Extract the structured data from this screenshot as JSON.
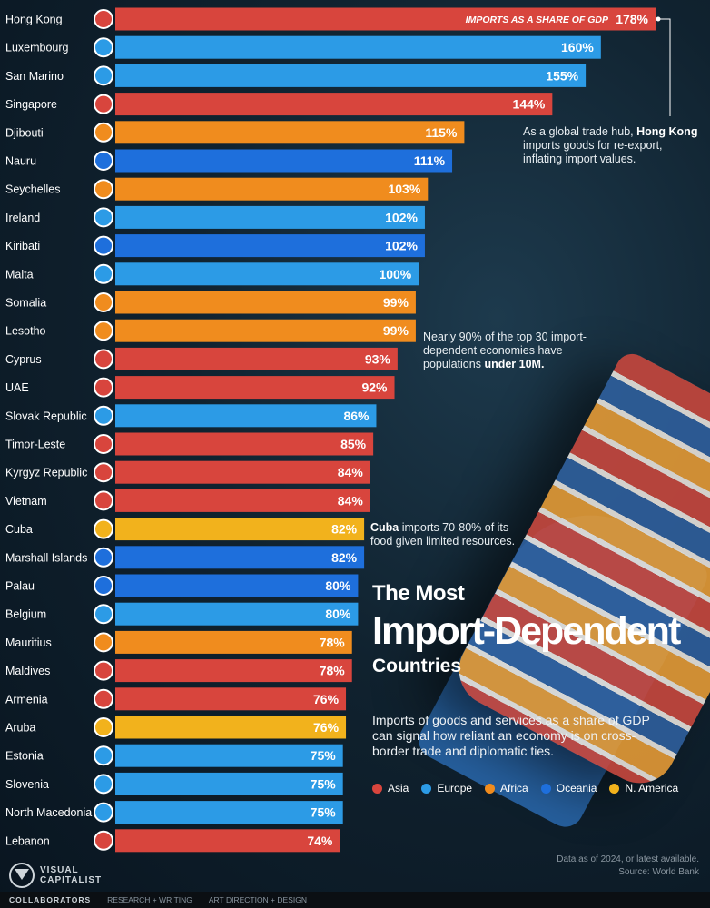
{
  "chart_data": {
    "type": "bar",
    "orientation": "horizontal",
    "title": "The Most",
    "title_main": "Import-Dependent",
    "title_sub": "Countries",
    "value_header": "IMPORTS AS A SHARE OF GDP",
    "unit_suffix": "%",
    "categories": [
      "Hong Kong",
      "Luxembourg",
      "San Marino",
      "Singapore",
      "Djibouti",
      "Nauru",
      "Seychelles",
      "Ireland",
      "Kiribati",
      "Malta",
      "Somalia",
      "Lesotho",
      "Cyprus",
      "UAE",
      "Slovak Republic",
      "Timor-Leste",
      "Kyrgyz Republic",
      "Vietnam",
      "Cuba",
      "Marshall Islands",
      "Palau",
      "Belgium",
      "Mauritius",
      "Maldives",
      "Armenia",
      "Aruba",
      "Estonia",
      "Slovenia",
      "North Macedonia",
      "Lebanon"
    ],
    "values": [
      178,
      160,
      155,
      144,
      115,
      111,
      103,
      102,
      102,
      100,
      99,
      99,
      93,
      92,
      86,
      85,
      84,
      84,
      82,
      82,
      80,
      80,
      78,
      78,
      76,
      76,
      75,
      75,
      75,
      74
    ],
    "regions": [
      "Asia",
      "Europe",
      "Europe",
      "Asia",
      "Africa",
      "Oceania",
      "Africa",
      "Europe",
      "Oceania",
      "Europe",
      "Africa",
      "Africa",
      "Asia",
      "Asia",
      "Europe",
      "Asia",
      "Asia",
      "Asia",
      "N. America",
      "Oceania",
      "Oceania",
      "Europe",
      "Africa",
      "Asia",
      "Asia",
      "N. America",
      "Europe",
      "Europe",
      "Europe",
      "Asia"
    ],
    "legend": [
      {
        "name": "Asia",
        "color": "#d8453d"
      },
      {
        "name": "Europe",
        "color": "#2c9be6"
      },
      {
        "name": "Africa",
        "color": "#f08c1e"
      },
      {
        "name": "Oceania",
        "color": "#1e6fdc"
      },
      {
        "name": "N. America",
        "color": "#f2b21c"
      }
    ],
    "legend_placement": "bottom-right",
    "xlim": [
      0,
      178
    ]
  },
  "annotations": {
    "hong_kong_pre": "As a global trade hub,",
    "hong_kong_bold": "Hong Kong",
    "hong_kong_post": "imports goods for re-export, inflating import values.",
    "population_pre": "Nearly 90% of the top 30 import-dependent economies have populations",
    "population_bold": "under 10M.",
    "cuba_bold": "Cuba",
    "cuba_post": "imports 70-80% of its food given limited resources."
  },
  "description": "Imports of goods and services as a share of GDP can signal how reliant an economy is on cross-border trade and diplomatic ties.",
  "source": {
    "line1": "Data as of 2024, or latest available.",
    "line2": "Source: World Bank"
  },
  "branding": {
    "logo_line1": "VISUAL",
    "logo_line2": "CAPITALIST",
    "collaborators": "COLLABORATORS",
    "research": "RESEARCH + WRITING",
    "art": "ART DIRECTION + DESIGN"
  }
}
